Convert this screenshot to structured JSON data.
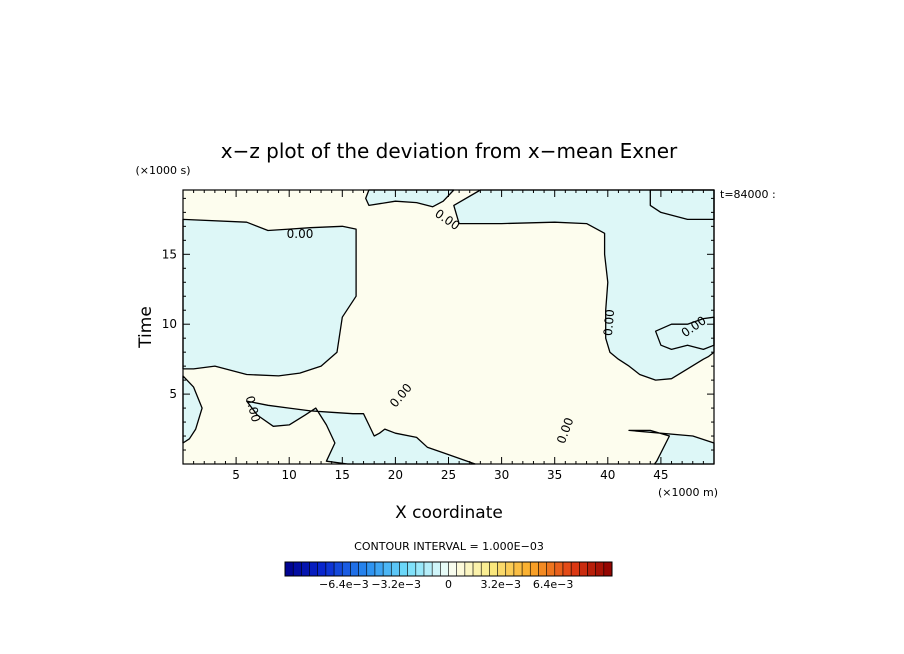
{
  "chart_data": {
    "type": "contour",
    "title": "x−z plot of the deviation from x−mean Exner",
    "xlabel": "X coordinate",
    "ylabel": "Time",
    "x_unit": "(×1000 m)",
    "y_unit": "(×1000 s)",
    "time_label": "t=84000 :",
    "xlim": [
      0,
      50
    ],
    "ylim": [
      0,
      19.6
    ],
    "x_ticks": [
      5,
      10,
      15,
      20,
      25,
      30,
      35,
      40,
      45
    ],
    "y_ticks": [
      5,
      10,
      15
    ],
    "contour_interval_label": "CONTOUR INTERVAL = 1.000E−03",
    "contour_label": "0.00",
    "colorbar": {
      "tick_labels": [
        "−6.4e−3",
        "−3.2e−3",
        "0",
        "3.2e−3",
        "6.4e−3"
      ],
      "tick_values": [
        -0.0064,
        -0.0032,
        0,
        0.0032,
        0.0064
      ],
      "range": [
        -0.01,
        0.01
      ],
      "n_bins": 40
    },
    "colors": {
      "negative_fill": "#ddf7f7",
      "positive_fill": "#fdfdee"
    },
    "regions": [
      {
        "sign": "negative",
        "points": [
          [
            0,
            17.5
          ],
          [
            6,
            17.3
          ],
          [
            8,
            16.7
          ],
          [
            10,
            16.8
          ],
          [
            12,
            16.9
          ],
          [
            15,
            17.0
          ],
          [
            16.3,
            16.8
          ],
          [
            16.3,
            12
          ],
          [
            15,
            10.5
          ],
          [
            14.5,
            8
          ],
          [
            13,
            7
          ],
          [
            11,
            6.5
          ],
          [
            9,
            6.3
          ],
          [
            6,
            6.4
          ],
          [
            3,
            7
          ],
          [
            1,
            6.8
          ],
          [
            0,
            6.8
          ]
        ]
      },
      {
        "sign": "negative",
        "points": [
          [
            0,
            6.3
          ],
          [
            1,
            5.5
          ],
          [
            1.8,
            4.0
          ],
          [
            1.2,
            2.5
          ],
          [
            0.6,
            1.8
          ],
          [
            0,
            1.5
          ]
        ]
      },
      {
        "sign": "negative",
        "points": [
          [
            6,
            4.5
          ],
          [
            7,
            3.5
          ],
          [
            8.5,
            2.7
          ],
          [
            10,
            2.8
          ],
          [
            11.5,
            3.5
          ],
          [
            12.5,
            4.0
          ],
          [
            13.5,
            2.8
          ],
          [
            14.3,
            1.5
          ],
          [
            13.5,
            0.2
          ],
          [
            15.5,
            0
          ],
          [
            27.5,
            0
          ],
          [
            24.5,
            0.8
          ],
          [
            23,
            1.2
          ],
          [
            22,
            1.9
          ],
          [
            20,
            2.2
          ],
          [
            19,
            2.5
          ],
          [
            18.5,
            2.2
          ],
          [
            18,
            2.0
          ],
          [
            17.5,
            2.8
          ],
          [
            17,
            3.6
          ],
          [
            16,
            3.6
          ],
          [
            14,
            3.7
          ],
          [
            12,
            3.8
          ],
          [
            10,
            4.0
          ],
          [
            8,
            4.2
          ]
        ]
      },
      {
        "sign": "negative",
        "points": [
          [
            25.5,
            19.6
          ],
          [
            24.5,
            18.8
          ],
          [
            23.5,
            18.4
          ],
          [
            22,
            18.7
          ],
          [
            20,
            18.8
          ],
          [
            17.5,
            18.5
          ],
          [
            17.2,
            19
          ],
          [
            17.5,
            19.6
          ]
        ]
      },
      {
        "sign": "negative",
        "points": [
          [
            28,
            19.6
          ],
          [
            25.5,
            18.5
          ],
          [
            26,
            17.2
          ],
          [
            30,
            17.2
          ],
          [
            35,
            17.3
          ],
          [
            38,
            17.2
          ],
          [
            39.7,
            16.5
          ],
          [
            39.7,
            15.0
          ],
          [
            40.0,
            13.0
          ],
          [
            39.8,
            11.0
          ],
          [
            39.8,
            9.0
          ],
          [
            40.2,
            8.0
          ],
          [
            41,
            7.5
          ],
          [
            42,
            7.0
          ],
          [
            43,
            6.4
          ],
          [
            44.5,
            6.0
          ],
          [
            46,
            6.1
          ],
          [
            47.5,
            6.8
          ],
          [
            49,
            7.5
          ],
          [
            49.5,
            7.7
          ],
          [
            50,
            8.0
          ],
          [
            50,
            19.6
          ]
        ]
      },
      {
        "sign": "negative",
        "points": [
          [
            44.5,
            9.5
          ],
          [
            46,
            10.0
          ],
          [
            47.5,
            10.0
          ],
          [
            49,
            10.4
          ],
          [
            50,
            10.5
          ],
          [
            50,
            8.5
          ],
          [
            49,
            8.2
          ],
          [
            47.5,
            8.5
          ],
          [
            46,
            8.2
          ],
          [
            45,
            8.5
          ]
        ]
      },
      {
        "sign": "negative",
        "points": [
          [
            47.5,
            17.5
          ],
          [
            50,
            17.5
          ],
          [
            50,
            19.6
          ],
          [
            44,
            19.6
          ],
          [
            44,
            18.5
          ],
          [
            45,
            18.0
          ]
        ]
      },
      {
        "sign": "negative",
        "points": [
          [
            42,
            2.4
          ],
          [
            44,
            2.4
          ],
          [
            45.8,
            2.0
          ],
          [
            44.6,
            0.2
          ],
          [
            44.4,
            0
          ],
          [
            50,
            0
          ],
          [
            50,
            1.5
          ],
          [
            48,
            2.0
          ]
        ]
      }
    ]
  }
}
